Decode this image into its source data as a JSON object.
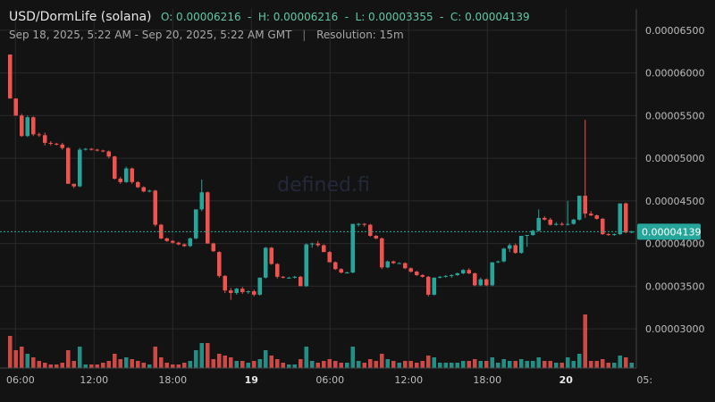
{
  "header": {
    "pair": "USD/DormLife (solana)",
    "open": "O: 0.00006216",
    "high": "H: 0.00006216",
    "low": "L: 0.00003355",
    "close": "C: 0.00004139",
    "range": "Sep 18, 2025, 5:22 AM - Sep 20, 2025, 5:22 AM GMT",
    "separator": "|",
    "resolution": "Resolution: 15m"
  },
  "watermark": "defined.fi",
  "colors": {
    "up": "#26a69a",
    "down": "#ef5350",
    "background": "#131313",
    "grid": "#2a2a2a",
    "price_tag": "#26a69a"
  },
  "chart_data": {
    "type": "candlestick",
    "y_ticks": [
      "0.00006500",
      "0.00006000",
      "0.00005500",
      "0.00005000",
      "0.00004500",
      "0.00004000",
      "0.00003500",
      "0.00003000"
    ],
    "y_tick_values": [
      6.5e-05,
      6e-05,
      5.5e-05,
      5e-05,
      4.5e-05,
      4e-05,
      3.5e-05,
      3e-05
    ],
    "ylim": [
      2.54e-05,
      6.75e-05
    ],
    "x_ticks": [
      {
        "label": "06:00",
        "hours": 0.63,
        "bold": false
      },
      {
        "label": "12:00",
        "hours": 6.63,
        "bold": false
      },
      {
        "label": "18:00",
        "hours": 12.63,
        "bold": false
      },
      {
        "label": "19",
        "hours": 18.63,
        "bold": true
      },
      {
        "label": "06:00",
        "hours": 24.63,
        "bold": false
      },
      {
        "label": "12:00",
        "hours": 30.63,
        "bold": false
      },
      {
        "label": "18:00",
        "hours": 36.63,
        "bold": false
      },
      {
        "label": "20",
        "hours": 42.63,
        "bold": true
      },
      {
        "label": "05:",
        "hours": 48.63,
        "bold": false
      }
    ],
    "current_price": "0.00004139",
    "current_value": 4.139e-05,
    "candles": [
      [
        6.216e-05,
        6.216e-05,
        5.7e-05,
        5.7e-05,
        0.18
      ],
      [
        5.7e-05,
        5.7e-05,
        5.5e-05,
        5.5e-05,
        0.1
      ],
      [
        5.5e-05,
        5.52e-05,
        5.25e-05,
        5.26e-05,
        0.12
      ],
      [
        5.26e-05,
        5.5e-05,
        5.25e-05,
        5.48e-05,
        0.08
      ],
      [
        5.48e-05,
        5.49e-05,
        5.26e-05,
        5.28e-05,
        0.06
      ],
      [
        5.28e-05,
        5.3e-05,
        5.25e-05,
        5.27e-05,
        0.04
      ],
      [
        5.27e-05,
        5.3e-05,
        5.15e-05,
        5.18e-05,
        0.03
      ],
      [
        5.18e-05,
        5.2e-05,
        5.15e-05,
        5.17e-05,
        0.02
      ],
      [
        5.17e-05,
        5.18e-05,
        5.15e-05,
        5.16e-05,
        0.02
      ],
      [
        5.16e-05,
        5.18e-05,
        5.1e-05,
        5.12e-05,
        0.03
      ],
      [
        5.12e-05,
        5.13e-05,
        4.7e-05,
        4.7e-05,
        0.1
      ],
      [
        4.7e-05,
        4.7e-05,
        4.65e-05,
        4.67e-05,
        0.04
      ],
      [
        4.67e-05,
        5.12e-05,
        4.66e-05,
        5.1e-05,
        0.12
      ],
      [
        5.1e-05,
        5.12e-05,
        5.09e-05,
        5.11e-05,
        0.02
      ],
      [
        5.11e-05,
        5.12e-05,
        5.09e-05,
        5.1e-05,
        0.02
      ],
      [
        5.1e-05,
        5.11e-05,
        5.08e-05,
        5.09e-05,
        0.02
      ],
      [
        5.09e-05,
        5.1e-05,
        5.07e-05,
        5.08e-05,
        0.03
      ],
      [
        5.08e-05,
        5.09e-05,
        5e-05,
        5.02e-05,
        0.04
      ],
      [
        5.02e-05,
        5.03e-05,
        4.75e-05,
        4.76e-05,
        0.08
      ],
      [
        4.76e-05,
        4.78e-05,
        4.7e-05,
        4.72e-05,
        0.05
      ],
      [
        4.72e-05,
        4.9e-05,
        4.71e-05,
        4.88e-05,
        0.06
      ],
      [
        4.88e-05,
        4.89e-05,
        4.7e-05,
        4.72e-05,
        0.05
      ],
      [
        4.72e-05,
        4.73e-05,
        4.65e-05,
        4.66e-05,
        0.04
      ],
      [
        4.66e-05,
        4.67e-05,
        4.6e-05,
        4.61e-05,
        0.03
      ],
      [
        4.61e-05,
        4.63e-05,
        4.6e-05,
        4.62e-05,
        0.02
      ],
      [
        4.62e-05,
        4.63e-05,
        4.2e-05,
        4.22e-05,
        0.12
      ],
      [
        4.22e-05,
        4.23e-05,
        4.05e-05,
        4.06e-05,
        0.06
      ],
      [
        4.06e-05,
        4.07e-05,
        4.02e-05,
        4.03e-05,
        0.03
      ],
      [
        4.03e-05,
        4.04e-05,
        4e-05,
        4.01e-05,
        0.02
      ],
      [
        4.01e-05,
        4.02e-05,
        3.98e-05,
        3.99e-05,
        0.02
      ],
      [
        3.99e-05,
        4e-05,
        3.96e-05,
        3.97e-05,
        0.03
      ],
      [
        3.97e-05,
        4.07e-05,
        3.96e-05,
        4.06e-05,
        0.04
      ],
      [
        4.06e-05,
        4.4e-05,
        4.05e-05,
        4.4e-05,
        0.1
      ],
      [
        4.4e-05,
        4.75e-05,
        4.38e-05,
        4.6e-05,
        0.14
      ],
      [
        4.6e-05,
        4.61e-05,
        4e-05,
        4e-05,
        0.14
      ],
      [
        4e-05,
        4.01e-05,
        3.9e-05,
        3.91e-05,
        0.05
      ],
      [
        3.9e-05,
        3.91e-05,
        3.6e-05,
        3.62e-05,
        0.08
      ],
      [
        3.62e-05,
        3.63e-05,
        3.42e-05,
        3.45e-05,
        0.07
      ],
      [
        3.45e-05,
        3.48e-05,
        3.34e-05,
        3.42e-05,
        0.06
      ],
      [
        3.42e-05,
        3.48e-05,
        3.4e-05,
        3.47e-05,
        0.04
      ],
      [
        3.47e-05,
        3.49e-05,
        3.41e-05,
        3.43e-05,
        0.04
      ],
      [
        3.43e-05,
        3.45e-05,
        3.41e-05,
        3.44e-05,
        0.03
      ],
      [
        3.44e-05,
        3.46e-05,
        3.38e-05,
        3.4e-05,
        0.04
      ],
      [
        3.4e-05,
        3.6e-05,
        3.39e-05,
        3.6e-05,
        0.05
      ],
      [
        3.6e-05,
        3.96e-05,
        3.59e-05,
        3.95e-05,
        0.1
      ],
      [
        3.95e-05,
        3.96e-05,
        3.75e-05,
        3.76e-05,
        0.07
      ],
      [
        3.76e-05,
        3.77e-05,
        3.59e-05,
        3.61e-05,
        0.05
      ],
      [
        3.61e-05,
        3.62e-05,
        3.59e-05,
        3.6e-05,
        0.03
      ],
      [
        3.6e-05,
        3.61e-05,
        3.59e-05,
        3.6e-05,
        0.02
      ],
      [
        3.6e-05,
        3.62e-05,
        3.59e-05,
        3.61e-05,
        0.02
      ],
      [
        3.61e-05,
        3.62e-05,
        3.5e-05,
        3.5e-05,
        0.05
      ],
      [
        3.5e-05,
        4e-05,
        3.49e-05,
        3.99e-05,
        0.12
      ],
      [
        3.99e-05,
        4.01e-05,
        3.95e-05,
        4e-05,
        0.04
      ],
      [
        4e-05,
        4.03e-05,
        3.96e-05,
        3.98e-05,
        0.03
      ],
      [
        3.98e-05,
        3.99e-05,
        3.9e-05,
        3.9e-05,
        0.04
      ],
      [
        3.9e-05,
        3.91e-05,
        3.78e-05,
        3.78e-05,
        0.05
      ],
      [
        3.78e-05,
        3.79e-05,
        3.69e-05,
        3.7e-05,
        0.04
      ],
      [
        3.7e-05,
        3.71e-05,
        3.65e-05,
        3.66e-05,
        0.03
      ],
      [
        3.66e-05,
        3.67e-05,
        3.65e-05,
        3.66e-05,
        0.03
      ],
      [
        3.66e-05,
        4.23e-05,
        3.65e-05,
        4.23e-05,
        0.12
      ],
      [
        4.23e-05,
        4.24e-05,
        4.2e-05,
        4.23e-05,
        0.04
      ],
      [
        4.23e-05,
        4.24e-05,
        4.2e-05,
        4.22e-05,
        0.03
      ],
      [
        4.22e-05,
        4.23e-05,
        4.08e-05,
        4.09e-05,
        0.05
      ],
      [
        4.09e-05,
        4.1e-05,
        4.05e-05,
        4.06e-05,
        0.04
      ],
      [
        4.06e-05,
        4.07e-05,
        3.7e-05,
        3.72e-05,
        0.08
      ],
      [
        3.72e-05,
        3.8e-05,
        3.71e-05,
        3.79e-05,
        0.05
      ],
      [
        3.79e-05,
        3.8e-05,
        3.76e-05,
        3.77e-05,
        0.04
      ],
      [
        3.77e-05,
        3.78e-05,
        3.76e-05,
        3.77e-05,
        0.03
      ],
      [
        3.77e-05,
        3.78e-05,
        3.7e-05,
        3.71e-05,
        0.04
      ],
      [
        3.71e-05,
        3.72e-05,
        3.66e-05,
        3.67e-05,
        0.04
      ],
      [
        3.67e-05,
        3.68e-05,
        3.62e-05,
        3.63e-05,
        0.03
      ],
      [
        3.63e-05,
        3.64e-05,
        3.6e-05,
        3.61e-05,
        0.04
      ],
      [
        3.61e-05,
        3.62e-05,
        3.38e-05,
        3.4e-05,
        0.07
      ],
      [
        3.4e-05,
        3.6e-05,
        3.39e-05,
        3.6e-05,
        0.06
      ],
      [
        3.6e-05,
        3.62e-05,
        3.59e-05,
        3.61e-05,
        0.03
      ],
      [
        3.61e-05,
        3.63e-05,
        3.6e-05,
        3.62e-05,
        0.03
      ],
      [
        3.62e-05,
        3.64e-05,
        3.6e-05,
        3.63e-05,
        0.03
      ],
      [
        3.63e-05,
        3.66e-05,
        3.62e-05,
        3.65e-05,
        0.03
      ],
      [
        3.65e-05,
        3.7e-05,
        3.64e-05,
        3.69e-05,
        0.04
      ],
      [
        3.69e-05,
        3.71e-05,
        3.64e-05,
        3.65e-05,
        0.04
      ],
      [
        3.65e-05,
        3.66e-05,
        3.5e-05,
        3.51e-05,
        0.05
      ],
      [
        3.51e-05,
        3.6e-05,
        3.5e-05,
        3.58e-05,
        0.04
      ],
      [
        3.58e-05,
        3.59e-05,
        3.5e-05,
        3.51e-05,
        0.04
      ],
      [
        3.51e-05,
        3.78e-05,
        3.5e-05,
        3.78e-05,
        0.06
      ],
      [
        3.78e-05,
        3.8e-05,
        3.77e-05,
        3.79e-05,
        0.03
      ],
      [
        3.79e-05,
        3.95e-05,
        3.78e-05,
        3.94e-05,
        0.05
      ],
      [
        3.94e-05,
        4e-05,
        3.9e-05,
        3.98e-05,
        0.04
      ],
      [
        3.98e-05,
        4e-05,
        3.88e-05,
        3.89e-05,
        0.04
      ],
      [
        3.89e-05,
        4.09e-05,
        3.88e-05,
        4.09e-05,
        0.05
      ],
      [
        4.09e-05,
        4.1e-05,
        3.96e-05,
        4.1e-05,
        0.04
      ],
      [
        4.1e-05,
        4.16e-05,
        4.09e-05,
        4.15e-05,
        0.04
      ],
      [
        4.15e-05,
        4.4e-05,
        4.14e-05,
        4.3e-05,
        0.06
      ],
      [
        4.3e-05,
        4.32e-05,
        4.27e-05,
        4.28e-05,
        0.04
      ],
      [
        4.28e-05,
        4.3e-05,
        4.21e-05,
        4.22e-05,
        0.04
      ],
      [
        4.22e-05,
        4.25e-05,
        4.21e-05,
        4.23e-05,
        0.03
      ],
      [
        4.23e-05,
        4.25e-05,
        4.21e-05,
        4.22e-05,
        0.03
      ],
      [
        4.22e-05,
        4.5e-05,
        4.21e-05,
        4.23e-05,
        0.06
      ],
      [
        4.23e-05,
        4.29e-05,
        4.22e-05,
        4.28e-05,
        0.04
      ],
      [
        4.28e-05,
        4.56e-05,
        4.27e-05,
        4.56e-05,
        0.08
      ],
      [
        4.56e-05,
        5.45e-05,
        4.3e-05,
        4.35e-05,
        0.3
      ],
      [
        4.35e-05,
        4.38e-05,
        4.32e-05,
        4.33e-05,
        0.04
      ],
      [
        4.33e-05,
        4.34e-05,
        4.28e-05,
        4.29e-05,
        0.04
      ],
      [
        4.29e-05,
        4.3e-05,
        4.1e-05,
        4.11e-05,
        0.05
      ],
      [
        4.11e-05,
        4.12e-05,
        4.09e-05,
        4.1e-05,
        0.03
      ],
      [
        4.1e-05,
        4.12e-05,
        4.09e-05,
        4.11e-05,
        0.03
      ],
      [
        4.11e-05,
        4.47e-05,
        4.1e-05,
        4.47e-05,
        0.07
      ],
      [
        4.47e-05,
        4.48e-05,
        4.12e-05,
        4.13e-05,
        0.06
      ],
      [
        4.13e-05,
        4.15e-05,
        4.12e-05,
        4.139e-05,
        0.03
      ]
    ]
  }
}
